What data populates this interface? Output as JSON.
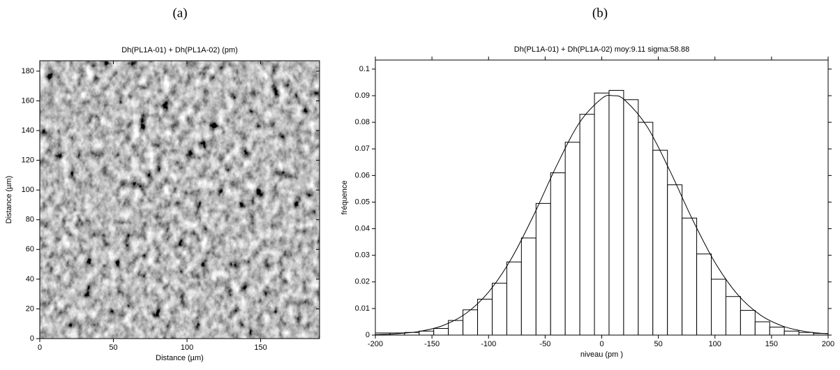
{
  "chart_data": [
    {
      "type": "image",
      "panel_label": "(a)",
      "title": "Dh(PL1A-01) + Dh(PL1A-02) (pm)",
      "xlabel": "Distance (µm)",
      "ylabel": "Distance (µm)",
      "xlim": [
        0,
        190
      ],
      "ylim": [
        0,
        187
      ],
      "xticks": [
        0,
        50,
        100,
        150
      ],
      "yticks": [
        0,
        20,
        40,
        60,
        80,
        100,
        120,
        140,
        160,
        180
      ]
    },
    {
      "type": "histogram",
      "panel_label": "(b)",
      "title": "Dh(PL1A-01) + Dh(PL1A-02)   moy:9.11   sigma:58.88",
      "xlabel": "niveau (pm )",
      "ylabel": "fréquence",
      "xlim": [
        -200,
        200
      ],
      "ylim": [
        0,
        0.1034
      ],
      "xticks": [
        -200,
        -150,
        -100,
        -50,
        0,
        50,
        100,
        150,
        200
      ],
      "yticks": [
        0,
        0.01,
        0.02,
        0.03,
        0.04,
        0.05,
        0.06,
        0.07,
        0.08,
        0.09,
        0.1
      ],
      "bins": [
        -200,
        -187.1,
        -174.19,
        -161.29,
        -148.39,
        -135.48,
        -122.58,
        -109.68,
        -96.77,
        -83.87,
        -70.97,
        -58.06,
        -45.16,
        -32.26,
        -19.35,
        -6.45,
        6.45,
        19.35,
        32.26,
        45.16,
        58.06,
        70.97,
        83.87,
        96.77,
        109.68,
        122.58,
        135.48,
        148.39,
        161.29,
        174.19,
        187.1,
        200
      ],
      "values": [
        0.0008,
        0.0008,
        0.001,
        0.0015,
        0.0025,
        0.0055,
        0.0095,
        0.0135,
        0.0195,
        0.0275,
        0.0365,
        0.0495,
        0.061,
        0.0725,
        0.083,
        0.091,
        0.092,
        0.0885,
        0.08,
        0.0695,
        0.0565,
        0.044,
        0.0305,
        0.021,
        0.0145,
        0.0093,
        0.005,
        0.003,
        0.0015,
        0.001,
        0.0006
      ],
      "color": "#000000",
      "curve": {
        "x": [
          -200,
          -180,
          -160,
          -140,
          -120,
          -100,
          -80,
          -60,
          -40,
          -20,
          0,
          10,
          20,
          40,
          60,
          80,
          100,
          120,
          140,
          160,
          180,
          200
        ],
        "values": [
          0.00016,
          0.00052,
          0.00146,
          0.00364,
          0.00813,
          0.01616,
          0.02863,
          0.0452,
          0.06356,
          0.07965,
          0.08893,
          0.09,
          0.08847,
          0.07843,
          0.06195,
          0.0436,
          0.02734,
          0.01527,
          0.0076,
          0.00337,
          0.00133,
          0.00047
        ]
      }
    }
  ]
}
